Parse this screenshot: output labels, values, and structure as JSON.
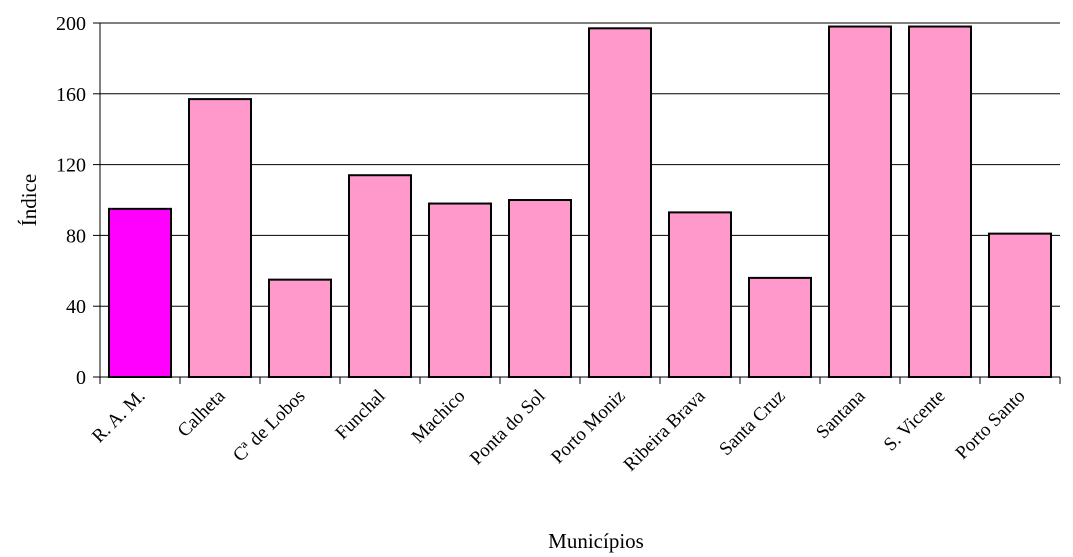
{
  "chart_data": {
    "type": "bar",
    "title": "",
    "xlabel": "Municípios",
    "ylabel": "Índice",
    "ylim": [
      0,
      200
    ],
    "yticks": [
      0,
      40,
      80,
      120,
      160,
      200
    ],
    "grid": true,
    "categories": [
      "R. A. M.",
      "Calheta",
      "Cª de Lobos",
      "Funchal",
      "Machico",
      "Ponta do Sol",
      "Porto Moniz",
      "Ribeira Brava",
      "Santa Cruz",
      "Santana",
      "S. Vicente",
      "Porto Santo"
    ],
    "values": [
      95,
      157,
      55,
      114,
      98,
      100,
      197,
      93,
      56,
      198,
      198,
      81
    ],
    "colors": {
      "highlight": "#ff00ff",
      "bar": "#ff99cc",
      "outline": "#000000",
      "gridline": "#000000"
    },
    "highlight_index": 0
  }
}
